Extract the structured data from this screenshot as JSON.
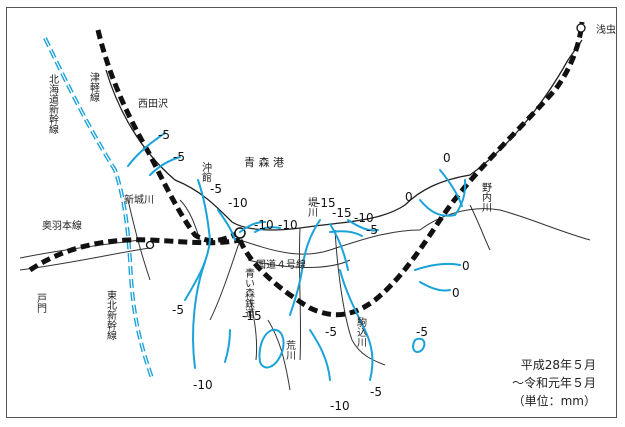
{
  "map": {
    "period_line1": "平成28年５月",
    "period_line2": "～令和元年５月",
    "unit": "（単位：mm）",
    "places": {
      "asamushi": "浅虫",
      "nishidasawa": "西田沢",
      "aomori_port": "青 森 港",
      "okidate": "沖館",
      "shinjogawa": "新城川",
      "tsutsumi": "堤川",
      "nonai": "野内川",
      "komagome": "駒込川",
      "arakawa": "荒川",
      "he": "戸門"
    },
    "lines": {
      "hokkaido_shinkansen": "北海道新幹線",
      "tsugaru": "津軽線",
      "ou": "奥羽本線",
      "tohoku_shinkansen": "東北新幹線",
      "route4": "国道４号線",
      "aoimori": "青い森鉄道"
    },
    "contour_labels": [
      "-5",
      "-5",
      "-5",
      "-10",
      "-10",
      "-10",
      "-15",
      "-15",
      "-10",
      "-5",
      "0",
      "0",
      "0",
      "0",
      "-5",
      "-15",
      "-5",
      "-5",
      "-10",
      "-10",
      "-5"
    ]
  }
}
